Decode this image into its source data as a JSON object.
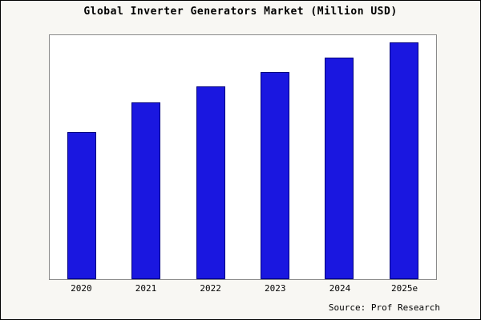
{
  "chart_data": {
    "type": "bar",
    "title": "Global Inverter Generators Market (Million USD)",
    "categories": [
      "2020",
      "2021",
      "2022",
      "2023",
      "2024",
      "2025e"
    ],
    "values": [
      620,
      748,
      815,
      876,
      936,
      1000
    ],
    "xlabel": "",
    "ylabel": "",
    "ylim": [
      0,
      1030
    ],
    "grid": false,
    "legend": false,
    "bar_color": "#1a17e0",
    "bar_border_color": "#00007e"
  },
  "source": "Source: Prof Research"
}
